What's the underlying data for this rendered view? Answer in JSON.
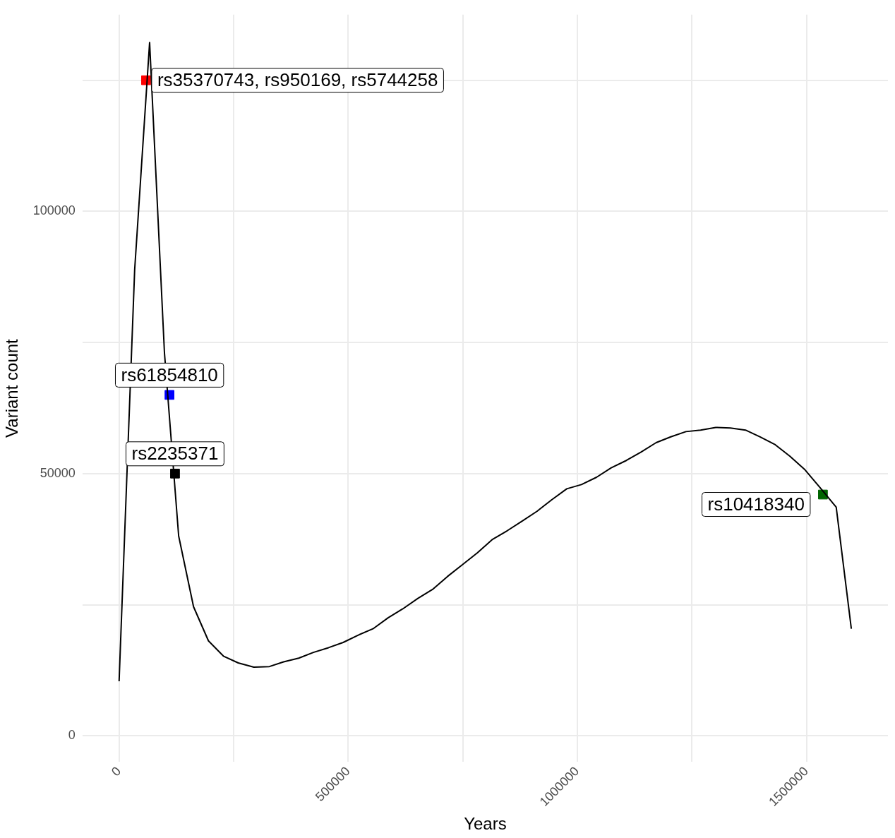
{
  "chart_data": {
    "type": "line",
    "xlabel": "Years",
    "ylabel": "Variant count",
    "xlim": [
      -79900,
      1677900
    ],
    "xticks": [
      0,
      {
        "value": 250000,
        "label": null
      },
      500000,
      {
        "value": 750000,
        "label": null
      },
      1000000,
      {
        "value": 1250000,
        "label": null
      },
      1500000
    ],
    "ylim": [
      -5000,
      137500
    ],
    "yticks": [
      0,
      {
        "value": 25000,
        "label": null
      },
      50000,
      {
        "value": 75000,
        "label": null
      },
      100000,
      {
        "value": 125000,
        "label": null
      }
    ],
    "grid": true,
    "legend": false,
    "marker": "none",
    "line_style": "solid",
    "series": [
      {
        "color": "#000000",
        "x": [
          0,
          34000,
          66600,
          99000,
          130000,
          162500,
          195000,
          227600,
          260000,
          294000,
          328000,
          359000,
          392000,
          424000,
          457000,
          489000,
          522000,
          554000,
          587000,
          619000,
          652000,
          684000,
          717000,
          749000,
          782000,
          814000,
          847000,
          879000,
          912000,
          944000,
          977000,
          1009000,
          1042000,
          1074000,
          1107000,
          1139000,
          1172000,
          1204000,
          1237000,
          1269000,
          1302000,
          1334000,
          1367000,
          1399000,
          1432000,
          1464000,
          1497000,
          1529000,
          1565000,
          1598000
        ],
        "values": [
          10400,
          88900,
          132200,
          73000,
          38100,
          24600,
          18100,
          15200,
          13900,
          13100,
          13200,
          14100,
          14800,
          15900,
          16800,
          17800,
          19200,
          20400,
          22500,
          24200,
          26200,
          27900,
          30400,
          32600,
          34900,
          37400,
          39100,
          40900,
          42800,
          45000,
          47100,
          47900,
          49300,
          51100,
          52500,
          54100,
          55900,
          57000,
          58000,
          58300,
          58800,
          58700,
          58300,
          57000,
          55500,
          53300,
          50700,
          47400,
          43600,
          20400
        ]
      },
      {
        "type": "scatter",
        "marker": "square",
        "x": [
          58800,
          110000,
          122000,
          1536000
        ],
        "values": [
          125000,
          65000,
          50000,
          46000
        ],
        "colors": [
          "#ff0000",
          "#0000ff",
          "#000000",
          "#006400"
        ]
      }
    ],
    "annotations": [
      {
        "text": "rs35370743, rs950169, rs5744258",
        "x": 58800,
        "y": 125000
      },
      {
        "text": "rs61854810",
        "x": 110000,
        "y": 65000
      },
      {
        "text": "rs2235371",
        "x": 122000,
        "y": 50000
      },
      {
        "text": "rs10418340",
        "x": 1536000,
        "y": 46000
      }
    ]
  }
}
